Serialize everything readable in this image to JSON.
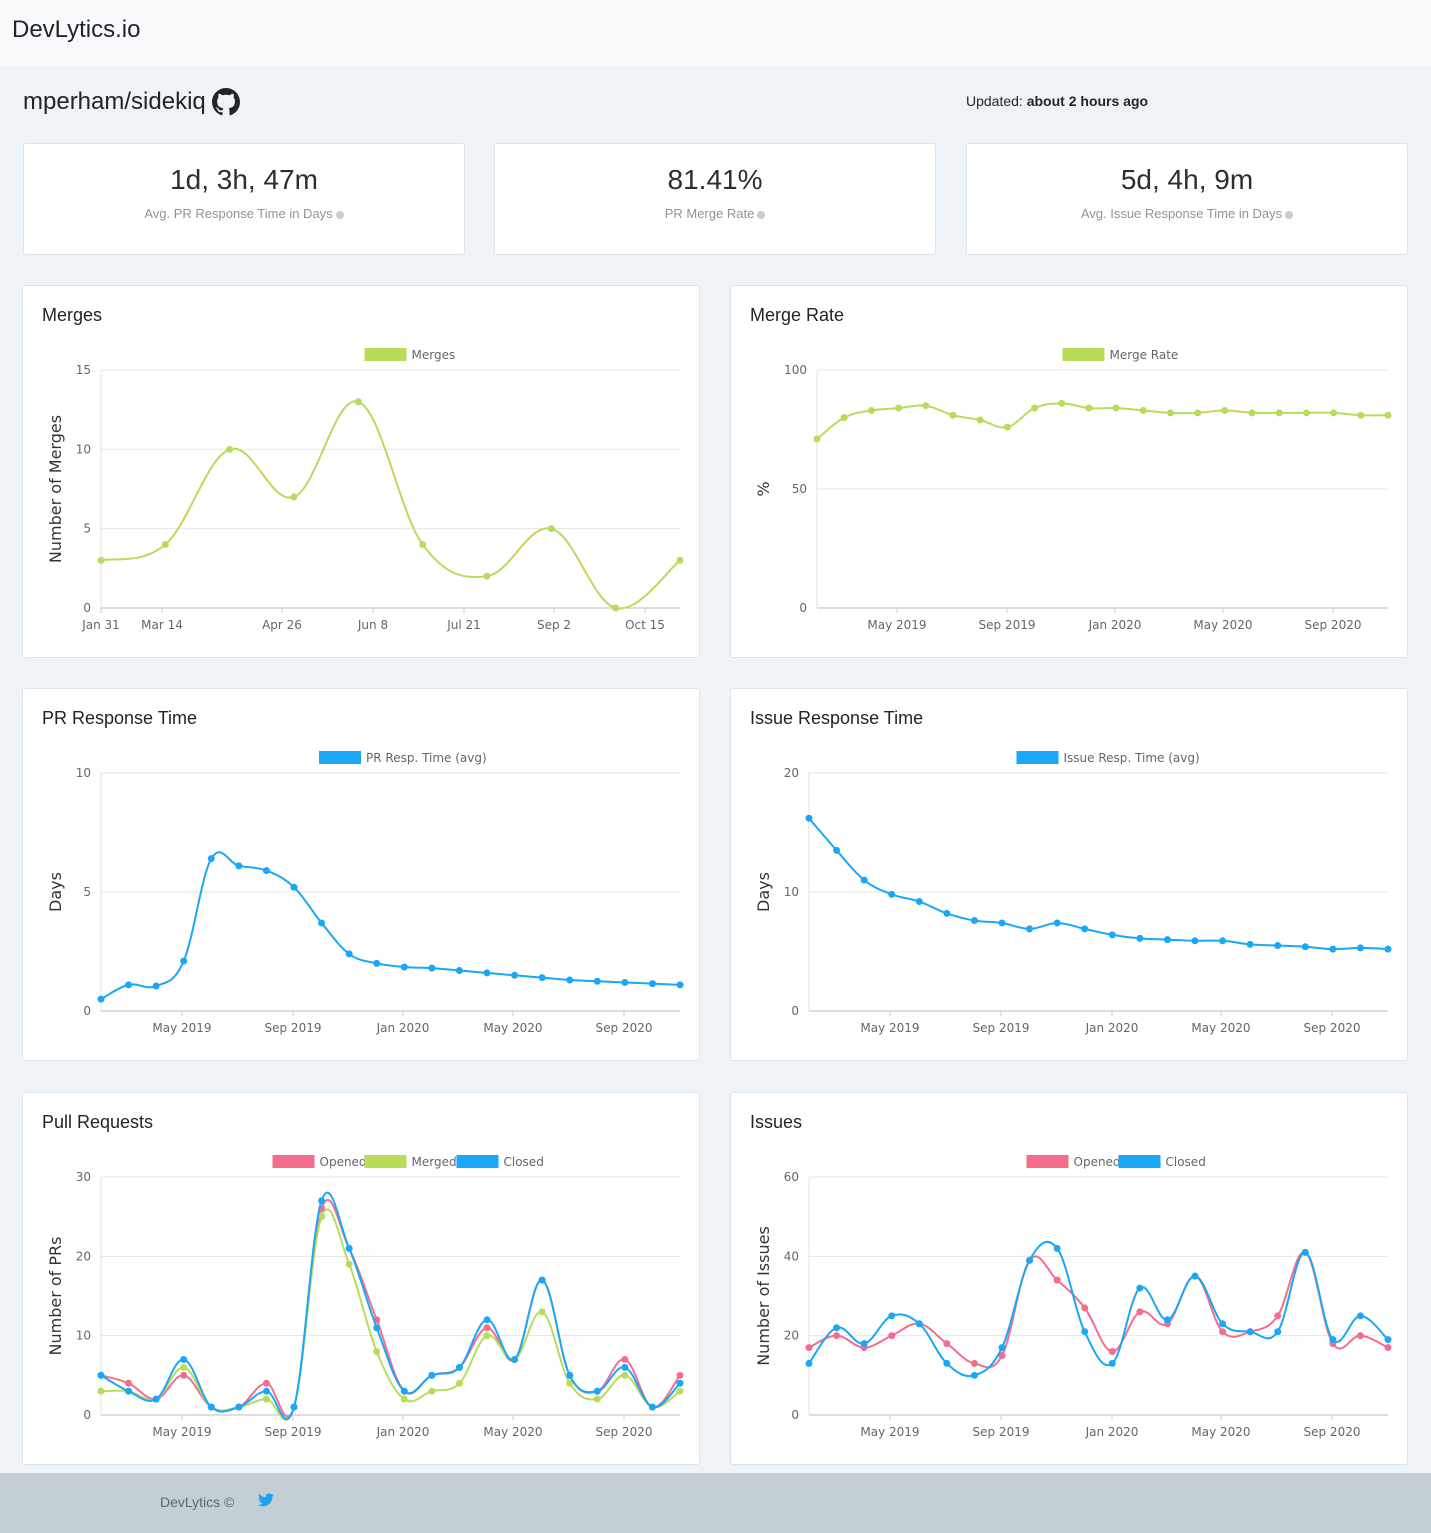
{
  "brand": "DevLytics.io",
  "repo": "mperham/sidekiq",
  "updated_label": "Updated:",
  "updated_value": "about 2 hours ago",
  "stats": [
    {
      "value": "1d, 3h, 47m",
      "label": "Avg. PR Response Time in Days"
    },
    {
      "value": "81.41%",
      "label": "PR Merge Rate"
    },
    {
      "value": "5d, 4h, 9m",
      "label": "Avg. Issue Response Time in Days"
    }
  ],
  "footer": {
    "copyright": "DevLytics ©"
  },
  "colors": {
    "green": "#b8dc5a",
    "blue": "#1aa7f5",
    "pink": "#f56d8e",
    "grid": "#e6e6e6"
  },
  "chart_data": [
    {
      "id": "merges",
      "title": "Merges",
      "type": "line",
      "ylabel": "Number of Merges",
      "ylim": [
        0,
        15
      ],
      "yticks": [
        0,
        5,
        10,
        15
      ],
      "x_labels": [
        "Jan 31",
        "Mar 14",
        "Apr 26",
        "Jun 8",
        "Jul 21",
        "Sep 2",
        "Oct 15"
      ],
      "series": [
        {
          "name": "Merges",
          "color": "#b8dc5a",
          "values": [
            3,
            4,
            10,
            7,
            13,
            4,
            2,
            5,
            0,
            3
          ]
        }
      ]
    },
    {
      "id": "merge_rate",
      "title": "Merge Rate",
      "type": "line",
      "ylabel": "%",
      "ylim": [
        0,
        100
      ],
      "yticks": [
        0,
        50,
        100
      ],
      "x_labels": [
        "May 2019",
        "Sep 2019",
        "Jan 2020",
        "May 2020",
        "Sep 2020"
      ],
      "series": [
        {
          "name": "Merge Rate",
          "color": "#b8dc5a",
          "values": [
            71,
            80,
            83,
            84,
            85,
            81,
            79,
            76,
            84,
            86,
            84,
            84,
            83,
            82,
            82,
            83,
            82,
            82,
            82,
            82,
            81,
            81
          ]
        }
      ]
    },
    {
      "id": "pr_response",
      "title": "PR Response Time",
      "type": "line",
      "ylabel": "Days",
      "ylim": [
        0,
        10
      ],
      "yticks": [
        0,
        5,
        10
      ],
      "x_labels": [
        "May 2019",
        "Sep 2019",
        "Jan 2020",
        "May 2020",
        "Sep 2020"
      ],
      "series": [
        {
          "name": "PR Resp. Time (avg)",
          "color": "#1aa7f5",
          "values": [
            0.5,
            1.1,
            1.05,
            2.1,
            6.4,
            6.1,
            5.9,
            5.2,
            3.7,
            2.4,
            2.0,
            1.85,
            1.8,
            1.7,
            1.6,
            1.5,
            1.4,
            1.3,
            1.25,
            1.2,
            1.15,
            1.1
          ]
        }
      ]
    },
    {
      "id": "issue_response",
      "title": "Issue Response Time",
      "type": "line",
      "ylabel": "Days",
      "ylim": [
        0,
        20
      ],
      "yticks": [
        0,
        10,
        20
      ],
      "x_labels": [
        "May 2019",
        "Sep 2019",
        "Jan 2020",
        "May 2020",
        "Sep 2020"
      ],
      "series": [
        {
          "name": "Issue Resp. Time (avg)",
          "color": "#1aa7f5",
          "values": [
            16.2,
            13.5,
            11.0,
            9.8,
            9.2,
            8.2,
            7.6,
            7.4,
            6.9,
            7.4,
            6.9,
            6.4,
            6.1,
            6.0,
            5.9,
            5.9,
            5.6,
            5.5,
            5.4,
            5.2,
            5.3,
            5.2
          ]
        }
      ]
    },
    {
      "id": "pull_requests",
      "title": "Pull Requests",
      "type": "line",
      "ylabel": "Number of PRs",
      "ylim": [
        0,
        30
      ],
      "yticks": [
        0,
        10,
        20,
        30
      ],
      "x_labels": [
        "May 2019",
        "Sep 2019",
        "Jan 2020",
        "May 2020",
        "Sep 2020"
      ],
      "series": [
        {
          "name": "Opened",
          "color": "#f56d8e",
          "values": [
            5,
            4,
            2,
            5,
            1,
            1,
            4,
            1,
            26,
            21,
            12,
            3,
            5,
            6,
            11,
            7,
            17,
            5,
            3,
            7,
            1,
            5
          ]
        },
        {
          "name": "Merged",
          "color": "#b8dc5a",
          "values": [
            3,
            3,
            2,
            6,
            1,
            1,
            2,
            1,
            25,
            19,
            8,
            2,
            3,
            4,
            10,
            7,
            13,
            4,
            2,
            5,
            1,
            3
          ]
        },
        {
          "name": "Closed",
          "color": "#1aa7f5",
          "values": [
            5,
            3,
            2,
            7,
            1,
            1,
            3,
            1,
            27,
            21,
            11,
            3,
            5,
            6,
            12,
            7,
            17,
            5,
            3,
            6,
            1,
            4
          ]
        }
      ]
    },
    {
      "id": "issues",
      "title": "Issues",
      "type": "line",
      "ylabel": "Number of Issues",
      "ylim": [
        0,
        60
      ],
      "yticks": [
        0,
        20,
        40,
        60
      ],
      "x_labels": [
        "May 2019",
        "Sep 2019",
        "Jan 2020",
        "May 2020",
        "Sep 2020"
      ],
      "series": [
        {
          "name": "Opened",
          "color": "#f56d8e",
          "values": [
            17,
            20,
            17,
            20,
            23,
            18,
            13,
            15,
            39,
            34,
            27,
            16,
            26,
            23,
            35,
            21,
            21,
            25,
            41,
            18,
            20,
            17
          ]
        },
        {
          "name": "Closed",
          "color": "#1aa7f5",
          "values": [
            13,
            22,
            18,
            25,
            23,
            13,
            10,
            17,
            39,
            42,
            21,
            13,
            32,
            24,
            35,
            23,
            21,
            21,
            41,
            19,
            25,
            19
          ]
        }
      ]
    }
  ]
}
